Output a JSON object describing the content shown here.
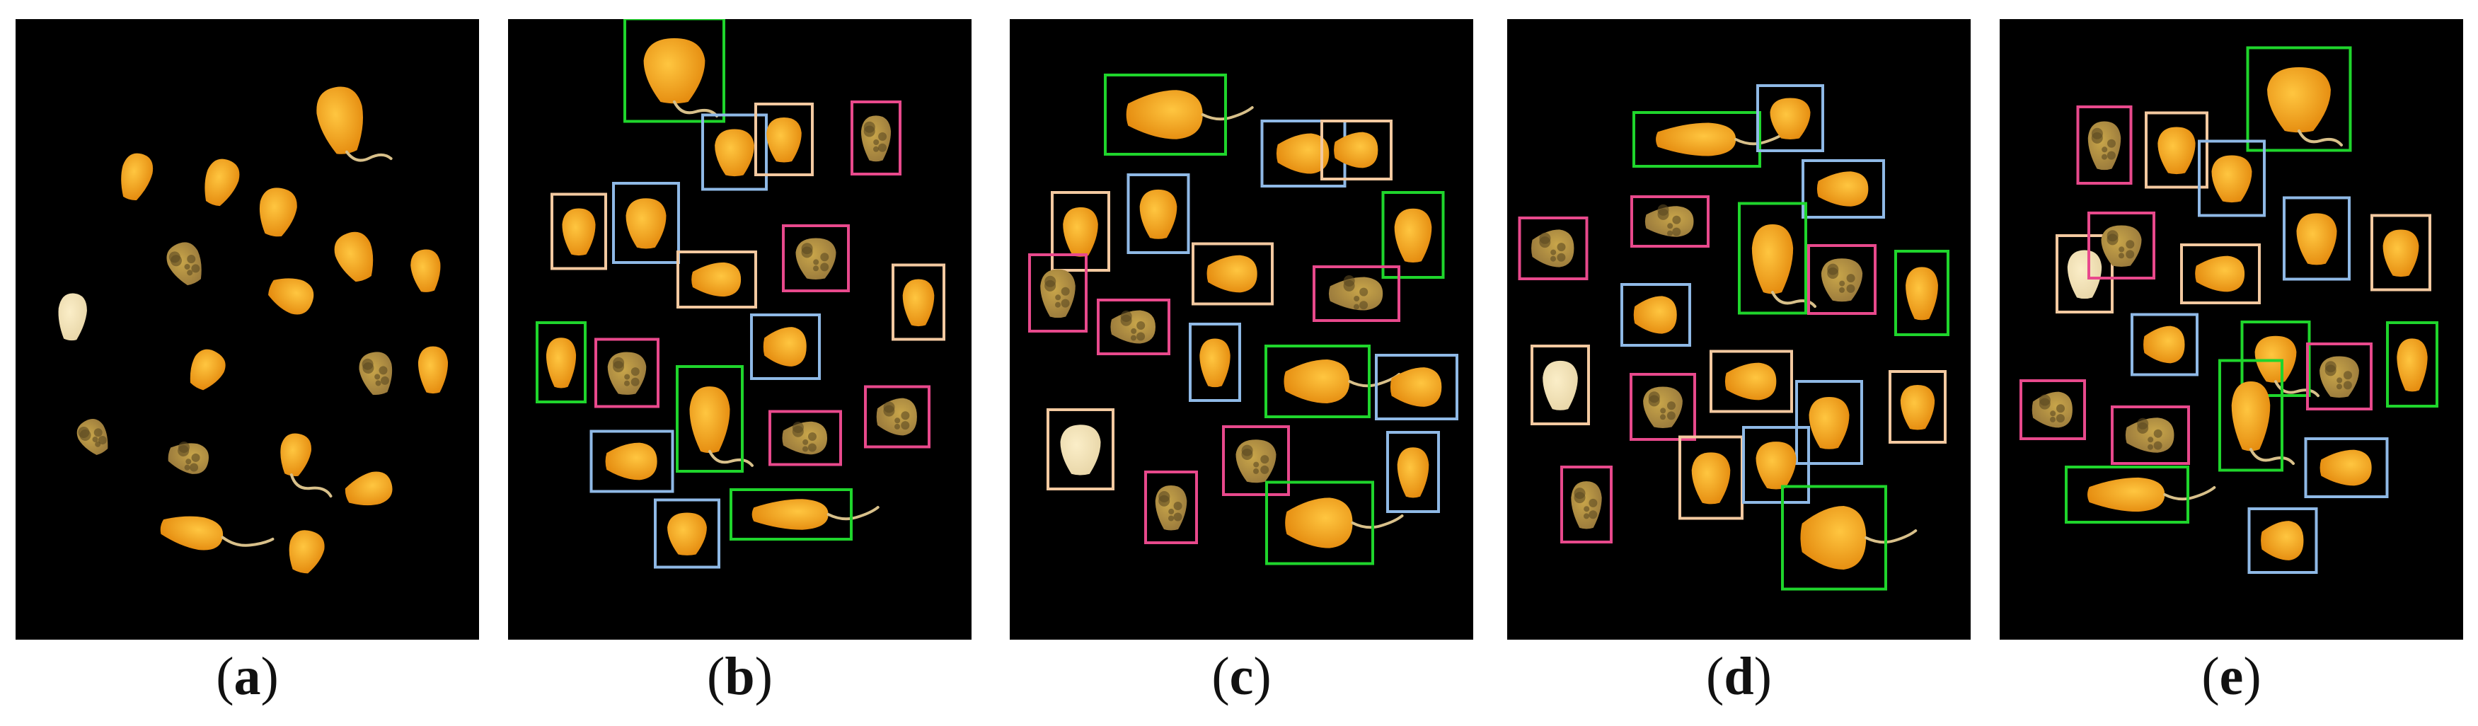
{
  "panels": [
    {
      "id": "a",
      "caption_open": "(",
      "caption_letter": "a",
      "caption_close": ")"
    },
    {
      "id": "b",
      "caption_open": "(",
      "caption_letter": "b",
      "caption_close": ")"
    },
    {
      "id": "c",
      "caption_open": "(",
      "caption_letter": "c",
      "caption_close": ")"
    },
    {
      "id": "d",
      "caption_open": "(",
      "caption_letter": "d",
      "caption_close": ")"
    },
    {
      "id": "e",
      "caption_open": "(",
      "caption_letter": "e",
      "caption_close": ")"
    }
  ],
  "colors": {
    "background": "#000000",
    "kernel_light": "#ffc640",
    "kernel_dark": "#e48a0e",
    "kernel_moldy": "#9a7a3c",
    "kernel_pale": "#e8d6a8",
    "box_green": "#1fd52c",
    "box_blue": "#8fb9e6",
    "box_peach": "#f3c9a0",
    "box_pink": "#e8498c"
  }
}
